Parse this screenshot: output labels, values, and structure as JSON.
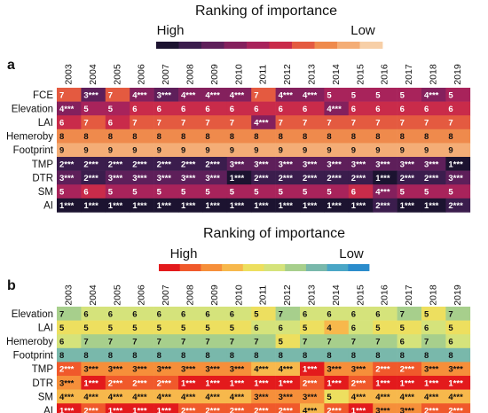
{
  "chart_data": [
    {
      "type": "heatmap",
      "panel_label": "a",
      "title": "Ranking of importance",
      "legend": {
        "high_label": "High",
        "low_label": "Low",
        "colors": [
          "#1c1330",
          "#3b1d4d",
          "#5e1f5a",
          "#84205d",
          "#a8235b",
          "#c92b4a",
          "#e45a40",
          "#ef8a4c",
          "#f4ad76",
          "#f7cfa7"
        ]
      },
      "columns": [
        "2003",
        "2004",
        "2005",
        "2006",
        "2007",
        "2008",
        "2009",
        "2010",
        "2011",
        "2012",
        "2013",
        "2014",
        "2015",
        "2016",
        "2017",
        "2018",
        "2019"
      ],
      "rows": [
        "FCE",
        "Elevation",
        "LAI",
        "Hemeroby",
        "Footprint",
        "TMP",
        "DTR",
        "SM",
        "AI"
      ],
      "cells": [
        [
          "7",
          "3***",
          "7",
          "4***",
          "3***",
          "4***",
          "4***",
          "4***",
          "7",
          "4***",
          "4***",
          "5",
          "5",
          "5",
          "5",
          "4***",
          "5"
        ],
        [
          "4***",
          "5",
          "5",
          "6",
          "6",
          "6",
          "6",
          "6",
          "6",
          "6",
          "6",
          "4***",
          "6",
          "6",
          "6",
          "6",
          "6"
        ],
        [
          "6",
          "7",
          "6",
          "7",
          "7",
          "7",
          "7",
          "7",
          "4***",
          "7",
          "7",
          "7",
          "7",
          "7",
          "7",
          "7",
          "7"
        ],
        [
          "8",
          "8",
          "8",
          "8",
          "8",
          "8",
          "8",
          "8",
          "8",
          "8",
          "8",
          "8",
          "8",
          "8",
          "8",
          "8",
          "8"
        ],
        [
          "9",
          "9",
          "9",
          "9",
          "9",
          "9",
          "9",
          "9",
          "9",
          "9",
          "9",
          "9",
          "9",
          "9",
          "9",
          "9",
          "9"
        ],
        [
          "2***",
          "2***",
          "2***",
          "2***",
          "2***",
          "2***",
          "2***",
          "3***",
          "3***",
          "3***",
          "3***",
          "3***",
          "3***",
          "3***",
          "3***",
          "3***",
          "1***"
        ],
        [
          "3***",
          "2***",
          "3***",
          "3***",
          "3***",
          "3***",
          "3***",
          "1***",
          "2***",
          "2***",
          "2***",
          "2***",
          "2***",
          "1***",
          "2***",
          "2***",
          "3***"
        ],
        [
          "5",
          "6",
          "5",
          "5",
          "5",
          "5",
          "5",
          "5",
          "5",
          "5",
          "5",
          "5",
          "6",
          "4***",
          "5",
          "5",
          "5"
        ],
        [
          "1***",
          "1***",
          "1***",
          "1***",
          "1***",
          "1***",
          "1***",
          "1***",
          "1***",
          "1***",
          "1***",
          "1***",
          "1***",
          "2***",
          "1***",
          "1***",
          "2***"
        ]
      ]
    },
    {
      "type": "heatmap",
      "panel_label": "b",
      "title": "Ranking of importance",
      "legend": {
        "high_label": "High",
        "low_label": "Low",
        "colors": [
          "#e31a1c",
          "#f0592b",
          "#f68f3a",
          "#f7b84c",
          "#eddf5f",
          "#d5e37b",
          "#a7cf8c",
          "#79b8ab",
          "#4aa6c6",
          "#2b8ccc"
        ]
      },
      "columns": [
        "2003",
        "2004",
        "2005",
        "2006",
        "2007",
        "2008",
        "2009",
        "2010",
        "2011",
        "2012",
        "2013",
        "2014",
        "2015",
        "2016",
        "2017",
        "2018",
        "2019"
      ],
      "rows": [
        "Elevation",
        "LAI",
        "Hemeroby",
        "Footprint",
        "TMP",
        "DTR",
        "SM",
        "AI"
      ],
      "cells": [
        [
          "7",
          "6",
          "6",
          "6",
          "6",
          "6",
          "6",
          "6",
          "5",
          "7",
          "6",
          "6",
          "6",
          "6",
          "7",
          "5",
          "7"
        ],
        [
          "5",
          "5",
          "5",
          "5",
          "5",
          "5",
          "5",
          "5",
          "6",
          "6",
          "5",
          "4",
          "6",
          "5",
          "5",
          "6",
          "5"
        ],
        [
          "6",
          "7",
          "7",
          "7",
          "7",
          "7",
          "7",
          "7",
          "7",
          "5",
          "7",
          "7",
          "7",
          "7",
          "6",
          "7",
          "6"
        ],
        [
          "8",
          "8",
          "8",
          "8",
          "8",
          "8",
          "8",
          "8",
          "8",
          "8",
          "8",
          "8",
          "8",
          "8",
          "8",
          "8",
          "8"
        ],
        [
          "2***",
          "3***",
          "3***",
          "3***",
          "3***",
          "3***",
          "3***",
          "3***",
          "4***",
          "4***",
          "1***",
          "3***",
          "3***",
          "2***",
          "2***",
          "3***",
          "3***"
        ],
        [
          "3***",
          "1***",
          "2***",
          "2***",
          "2***",
          "1***",
          "1***",
          "1***",
          "1***",
          "1***",
          "2***",
          "1***",
          "2***",
          "1***",
          "1***",
          "1***",
          "1***"
        ],
        [
          "4***",
          "4***",
          "4***",
          "4***",
          "4***",
          "4***",
          "4***",
          "4***",
          "3***",
          "3***",
          "3***",
          "5",
          "4***",
          "4***",
          "4***",
          "4***",
          "4***"
        ],
        [
          "1***",
          "2***",
          "1***",
          "1***",
          "1***",
          "2***",
          "2***",
          "2***",
          "2***",
          "2***",
          "4***",
          "2***",
          "1***",
          "3***",
          "3***",
          "2***",
          "2***"
        ]
      ]
    }
  ]
}
